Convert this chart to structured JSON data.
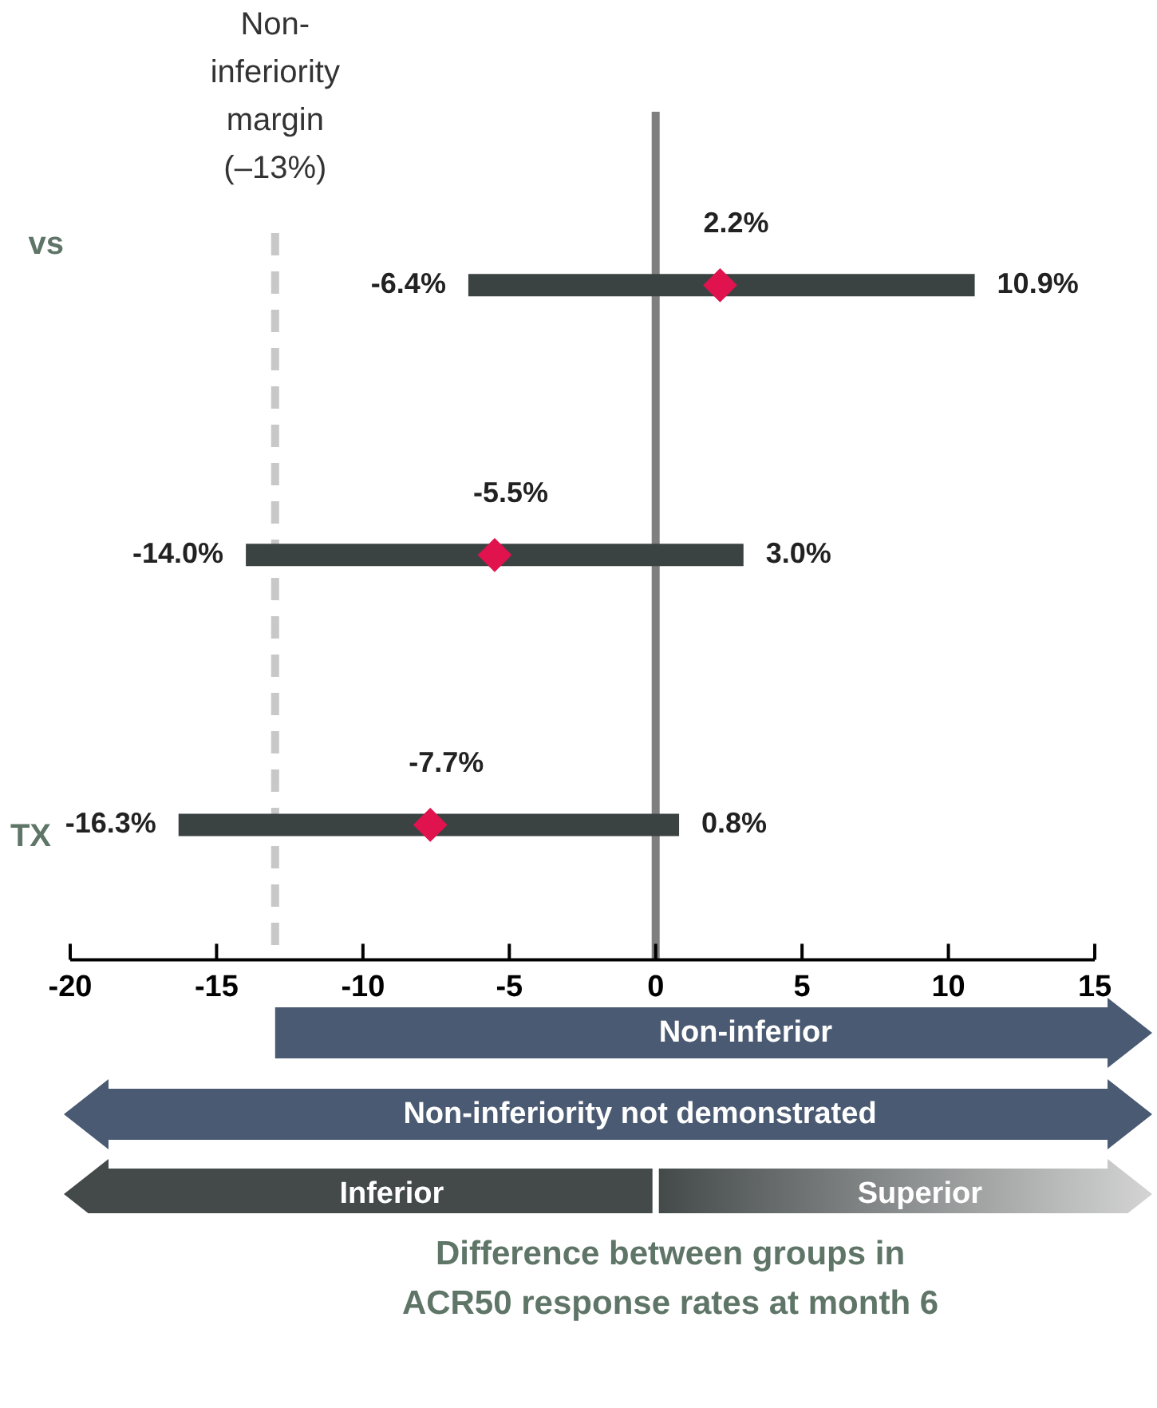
{
  "chart_data": {
    "type": "scatter",
    "orientation": "horizontal",
    "categories": [
      "vs",
      null,
      "TX"
    ],
    "series": [
      {
        "color": "#e0134f",
        "values": [
          2.2,
          -5.5,
          -7.7
        ],
        "errors": [
          [
            -6.4,
            10.9
          ],
          [
            -14.0,
            3.0
          ],
          [
            -16.3,
            0.8
          ]
        ],
        "value_labels": [
          "2.2%",
          "-5.5%",
          "-7.7%"
        ]
      }
    ],
    "marker": "diamond",
    "xlim": [
      -20,
      15
    ],
    "xticks": [
      -20,
      -15,
      -10,
      -5,
      0,
      5,
      10,
      15
    ],
    "ref_lines": [
      {
        "axis": "x",
        "value": -13,
        "label": "Non-inferiority margin (–13%)",
        "color": "#c8c8c8",
        "line_style": "dashed"
      },
      {
        "axis": "x",
        "value": 0,
        "color": "#7f7f7f",
        "line_style": "solid"
      }
    ],
    "annotations": [
      "Non-inferior",
      "Non-inferiority not demonstrated",
      "Inferior",
      "Superior",
      "Difference between groups in ACR50 response rates at month 6",
      {
        "text": "-6.4%",
        "x": -6.4
      },
      {
        "text": "10.9%",
        "x": 10.9
      },
      {
        "text": "-14.0%",
        "x": -14.0
      },
      {
        "text": "3.0%",
        "x": 3.0
      },
      {
        "text": "-16.3%",
        "x": -16.3
      },
      {
        "text": "0.8%",
        "x": 0.8
      }
    ]
  }
}
